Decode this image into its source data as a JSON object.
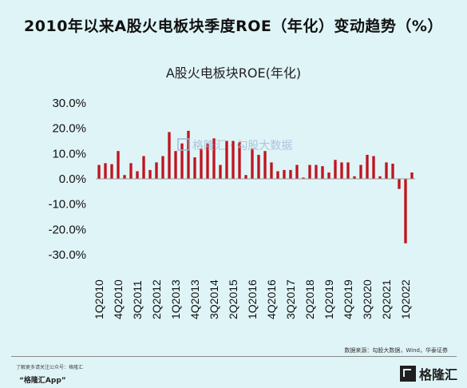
{
  "header": {
    "title": "2010年以来A股火电板块季度ROE（年化）变动趋势（%）"
  },
  "watermark": {
    "text": "格隆汇 · 勾股大数据"
  },
  "footer": {
    "source": "数据来源：勾股大数据，Wind，华泰证券",
    "note": "了解更多请关注公众号：格隆汇",
    "app": "“格隆汇App”",
    "brand": "格隆汇"
  },
  "colors": {
    "bar": "#c0141f",
    "background": "#dff4f7",
    "axis": "#9a9a9a"
  },
  "chart_data": {
    "type": "bar",
    "title": "A股火电板块ROE(年化)",
    "xlabel": "",
    "ylabel": "",
    "ylim": [
      -30,
      30
    ],
    "yticks": [
      "30.0%",
      "20.0%",
      "10.0%",
      "0.0%",
      "-10.0%",
      "-20.0%",
      "-30.0%"
    ],
    "ytick_values": [
      30,
      20,
      10,
      0,
      -10,
      -20,
      -30
    ],
    "categories": [
      "1Q2010",
      "2Q2010",
      "3Q2010",
      "4Q2010",
      "1Q2011",
      "2Q2011",
      "3Q2011",
      "4Q2011",
      "1Q2012",
      "2Q2012",
      "3Q2012",
      "4Q2012",
      "1Q2013",
      "2Q2013",
      "3Q2013",
      "4Q2013",
      "1Q2014",
      "2Q2014",
      "3Q2014",
      "4Q2014",
      "1Q2015",
      "2Q2015",
      "3Q2015",
      "4Q2015",
      "1Q2016",
      "2Q2016",
      "3Q2016",
      "4Q2016",
      "1Q2017",
      "2Q2017",
      "3Q2017",
      "4Q2017",
      "1Q2018",
      "2Q2018",
      "3Q2018",
      "4Q2018",
      "1Q2019",
      "2Q2019",
      "3Q2019",
      "4Q2019",
      "1Q2020",
      "2Q2020",
      "3Q2020",
      "4Q2020",
      "1Q2021",
      "2Q2021",
      "3Q2021",
      "4Q2021",
      "1Q2022",
      "2Q2022"
    ],
    "xtick_labels": [
      "1Q2010",
      "4Q2010",
      "3Q2011",
      "2Q2012",
      "1Q2013",
      "4Q2013",
      "3Q2014",
      "2Q2015",
      "1Q2016",
      "4Q2016",
      "3Q2017",
      "2Q2018",
      "1Q2019",
      "4Q2019",
      "3Q2020",
      "2Q2021",
      "1Q2022"
    ],
    "values": [
      5.5,
      6.2,
      5.8,
      11.0,
      1.5,
      6.2,
      3.0,
      9.0,
      3.5,
      6.5,
      9.0,
      18.5,
      11.0,
      14.0,
      19.0,
      8.5,
      12.0,
      14.0,
      16.0,
      5.5,
      15.0,
      15.0,
      14.5,
      1.5,
      12.0,
      9.5,
      11.0,
      6.5,
      3.0,
      3.5,
      3.5,
      5.5,
      0.5,
      5.5,
      5.5,
      5.0,
      2.5,
      7.5,
      6.5,
      6.5,
      1.0,
      5.5,
      9.5,
      9.0,
      1.0,
      6.5,
      6.0,
      -4.0,
      -25.5,
      2.5
    ],
    "grid": false,
    "legend": "none"
  }
}
